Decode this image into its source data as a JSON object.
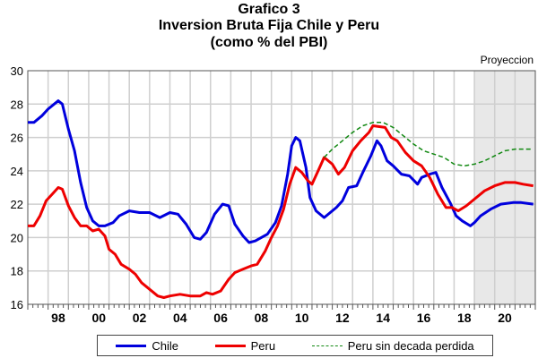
{
  "chart_data": {
    "type": "line",
    "title": "Grafico 3",
    "subtitle": "Inversion Bruta Fija Chile y Peru",
    "subtitle2": "(como % del PBI)",
    "annotation": "Proyeccion",
    "projection_range": [
      2019.0,
      2022.0
    ],
    "xlim": [
      1997.0,
      2022.0
    ],
    "ylim": [
      16,
      30
    ],
    "y_ticks": [
      16,
      18,
      20,
      22,
      24,
      26,
      28,
      30
    ],
    "x_tick_labels": [
      {
        "year": 1998,
        "label": "98"
      },
      {
        "year": 2000,
        "label": "00"
      },
      {
        "year": 2002,
        "label": "02"
      },
      {
        "year": 2004,
        "label": "04"
      },
      {
        "year": 2006,
        "label": "06"
      },
      {
        "year": 2008,
        "label": "08"
      },
      {
        "year": 2010,
        "label": "10"
      },
      {
        "year": 2012,
        "label": "12"
      },
      {
        "year": 2014,
        "label": "14"
      },
      {
        "year": 2016,
        "label": "16"
      },
      {
        "year": 2018,
        "label": "18"
      },
      {
        "year": 2020,
        "label": "20"
      }
    ],
    "grid": true,
    "legend_position": "bottom",
    "series": [
      {
        "name": "Chile",
        "color": "#0000dd",
        "dash": false,
        "points": [
          [
            1997.0,
            26.9
          ],
          [
            1997.3,
            26.9
          ],
          [
            1997.7,
            27.3
          ],
          [
            1998.0,
            27.7
          ],
          [
            1998.3,
            28.0
          ],
          [
            1998.5,
            28.2
          ],
          [
            1998.7,
            28.0
          ],
          [
            1999.0,
            26.5
          ],
          [
            1999.3,
            25.2
          ],
          [
            1999.6,
            23.3
          ],
          [
            1999.9,
            21.8
          ],
          [
            2000.2,
            21.0
          ],
          [
            2000.5,
            20.7
          ],
          [
            2000.8,
            20.7
          ],
          [
            2001.2,
            20.9
          ],
          [
            2001.5,
            21.3
          ],
          [
            2002.0,
            21.6
          ],
          [
            2002.5,
            21.5
          ],
          [
            2003.0,
            21.5
          ],
          [
            2003.5,
            21.2
          ],
          [
            2004.0,
            21.5
          ],
          [
            2004.4,
            21.4
          ],
          [
            2004.8,
            20.8
          ],
          [
            2005.2,
            20.0
          ],
          [
            2005.5,
            19.9
          ],
          [
            2005.8,
            20.3
          ],
          [
            2006.2,
            21.4
          ],
          [
            2006.6,
            22.0
          ],
          [
            2006.9,
            21.9
          ],
          [
            2007.2,
            20.8
          ],
          [
            2007.6,
            20.1
          ],
          [
            2007.9,
            19.7
          ],
          [
            2008.2,
            19.8
          ],
          [
            2008.5,
            20.0
          ],
          [
            2008.8,
            20.2
          ],
          [
            2009.2,
            20.9
          ],
          [
            2009.5,
            21.9
          ],
          [
            2009.8,
            23.8
          ],
          [
            2010.0,
            25.5
          ],
          [
            2010.2,
            26.0
          ],
          [
            2010.4,
            25.8
          ],
          [
            2010.7,
            24.2
          ],
          [
            2010.9,
            22.4
          ],
          [
            2011.2,
            21.6
          ],
          [
            2011.6,
            21.2
          ],
          [
            2011.9,
            21.5
          ],
          [
            2012.2,
            21.8
          ],
          [
            2012.5,
            22.2
          ],
          [
            2012.8,
            23.0
          ],
          [
            2013.2,
            23.1
          ],
          [
            2013.5,
            23.9
          ],
          [
            2013.9,
            24.9
          ],
          [
            2014.2,
            25.8
          ],
          [
            2014.4,
            25.5
          ],
          [
            2014.7,
            24.6
          ],
          [
            2015.0,
            24.3
          ],
          [
            2015.4,
            23.8
          ],
          [
            2015.8,
            23.7
          ],
          [
            2016.2,
            23.2
          ],
          [
            2016.4,
            23.6
          ],
          [
            2016.8,
            23.8
          ],
          [
            2017.1,
            23.9
          ],
          [
            2017.4,
            23.0
          ],
          [
            2017.8,
            22.1
          ],
          [
            2018.1,
            21.3
          ],
          [
            2018.4,
            21.0
          ],
          [
            2018.8,
            20.7
          ],
          [
            2019.0,
            20.9
          ],
          [
            2019.3,
            21.3
          ],
          [
            2019.8,
            21.7
          ],
          [
            2020.3,
            22.0
          ],
          [
            2020.9,
            22.1
          ],
          [
            2021.3,
            22.1
          ],
          [
            2021.9,
            22.0
          ]
        ]
      },
      {
        "name": "Peru",
        "color": "#ee0000",
        "dash": false,
        "points": [
          [
            1997.0,
            20.7
          ],
          [
            1997.3,
            20.7
          ],
          [
            1997.6,
            21.3
          ],
          [
            1997.9,
            22.2
          ],
          [
            1998.2,
            22.6
          ],
          [
            1998.5,
            23.0
          ],
          [
            1998.7,
            22.9
          ],
          [
            1999.0,
            21.9
          ],
          [
            1999.3,
            21.2
          ],
          [
            1999.6,
            20.7
          ],
          [
            1999.9,
            20.7
          ],
          [
            2000.2,
            20.4
          ],
          [
            2000.5,
            20.5
          ],
          [
            2000.8,
            20.1
          ],
          [
            2001.0,
            19.3
          ],
          [
            2001.3,
            19.0
          ],
          [
            2001.6,
            18.4
          ],
          [
            2002.0,
            18.1
          ],
          [
            2002.3,
            17.8
          ],
          [
            2002.6,
            17.3
          ],
          [
            2003.0,
            16.9
          ],
          [
            2003.4,
            16.5
          ],
          [
            2003.7,
            16.4
          ],
          [
            2004.0,
            16.5
          ],
          [
            2004.5,
            16.6
          ],
          [
            2005.0,
            16.5
          ],
          [
            2005.5,
            16.5
          ],
          [
            2005.8,
            16.7
          ],
          [
            2006.1,
            16.6
          ],
          [
            2006.5,
            16.8
          ],
          [
            2006.9,
            17.5
          ],
          [
            2007.2,
            17.9
          ],
          [
            2007.6,
            18.1
          ],
          [
            2008.0,
            18.3
          ],
          [
            2008.3,
            18.4
          ],
          [
            2008.7,
            19.2
          ],
          [
            2009.0,
            20.0
          ],
          [
            2009.3,
            20.7
          ],
          [
            2009.6,
            21.7
          ],
          [
            2009.9,
            23.2
          ],
          [
            2010.2,
            24.2
          ],
          [
            2010.5,
            23.9
          ],
          [
            2010.8,
            23.4
          ],
          [
            2011.0,
            23.2
          ],
          [
            2011.3,
            24.0
          ],
          [
            2011.6,
            24.8
          ],
          [
            2012.0,
            24.4
          ],
          [
            2012.3,
            23.8
          ],
          [
            2012.6,
            24.2
          ],
          [
            2013.0,
            25.2
          ],
          [
            2013.4,
            25.8
          ],
          [
            2013.8,
            26.3
          ],
          [
            2014.0,
            26.7
          ],
          [
            2014.6,
            26.6
          ],
          [
            2014.9,
            26.0
          ],
          [
            2015.2,
            25.8
          ],
          [
            2015.6,
            25.1
          ],
          [
            2016.0,
            24.6
          ],
          [
            2016.4,
            24.3
          ],
          [
            2016.8,
            23.6
          ],
          [
            2017.2,
            22.6
          ],
          [
            2017.6,
            21.8
          ],
          [
            2017.9,
            21.8
          ],
          [
            2018.2,
            21.6
          ],
          [
            2018.6,
            21.9
          ],
          [
            2019.0,
            22.3
          ],
          [
            2019.5,
            22.8
          ],
          [
            2020.0,
            23.1
          ],
          [
            2020.5,
            23.3
          ],
          [
            2021.0,
            23.3
          ],
          [
            2021.4,
            23.2
          ],
          [
            2021.9,
            23.1
          ]
        ]
      },
      {
        "name": "Peru sin decada perdida",
        "color": "#118811",
        "dash": true,
        "points": [
          [
            2011.6,
            24.8
          ],
          [
            2012.0,
            25.3
          ],
          [
            2012.5,
            25.8
          ],
          [
            2013.0,
            26.3
          ],
          [
            2013.5,
            26.7
          ],
          [
            2014.0,
            26.9
          ],
          [
            2014.5,
            26.9
          ],
          [
            2015.0,
            26.6
          ],
          [
            2015.5,
            26.1
          ],
          [
            2016.0,
            25.6
          ],
          [
            2016.5,
            25.2
          ],
          [
            2017.0,
            25.0
          ],
          [
            2017.5,
            24.8
          ],
          [
            2018.0,
            24.4
          ],
          [
            2018.5,
            24.3
          ],
          [
            2019.0,
            24.4
          ],
          [
            2019.5,
            24.6
          ],
          [
            2020.0,
            24.9
          ],
          [
            2020.5,
            25.2
          ],
          [
            2021.0,
            25.3
          ],
          [
            2021.9,
            25.3
          ]
        ]
      }
    ]
  }
}
